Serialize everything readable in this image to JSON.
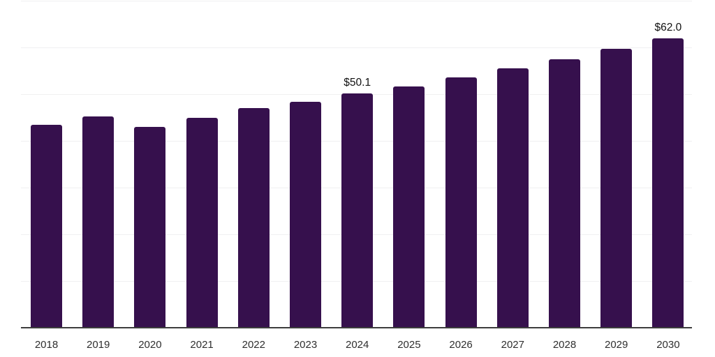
{
  "chart": {
    "background_color": "#ffffff",
    "bar_color": "#36104d",
    "gridline_color": "#f0f0f1",
    "axis_line_color": "#3d3d3d",
    "data_label_color": "#111111",
    "tick_label_color": "#2f2f2f"
  },
  "chart_data": {
    "type": "bar",
    "title": "",
    "xlabel": "",
    "ylabel": "",
    "categories": [
      "2018",
      "2019",
      "2020",
      "2021",
      "2022",
      "2023",
      "2024",
      "2025",
      "2026",
      "2027",
      "2028",
      "2029",
      "2030"
    ],
    "values": [
      43.5,
      45.2,
      43.0,
      44.9,
      47.0,
      48.3,
      50.1,
      51.6,
      53.6,
      55.5,
      57.4,
      59.7,
      62.0
    ],
    "ylim": [
      0,
      70
    ],
    "gridline_step": 10,
    "grid": "horizontal",
    "y_axis_labels_visible": false,
    "legend": "none",
    "data_labels": [
      {
        "category": "2024",
        "label": "$50.1"
      },
      {
        "category": "2030",
        "label": "$62.0"
      }
    ]
  }
}
